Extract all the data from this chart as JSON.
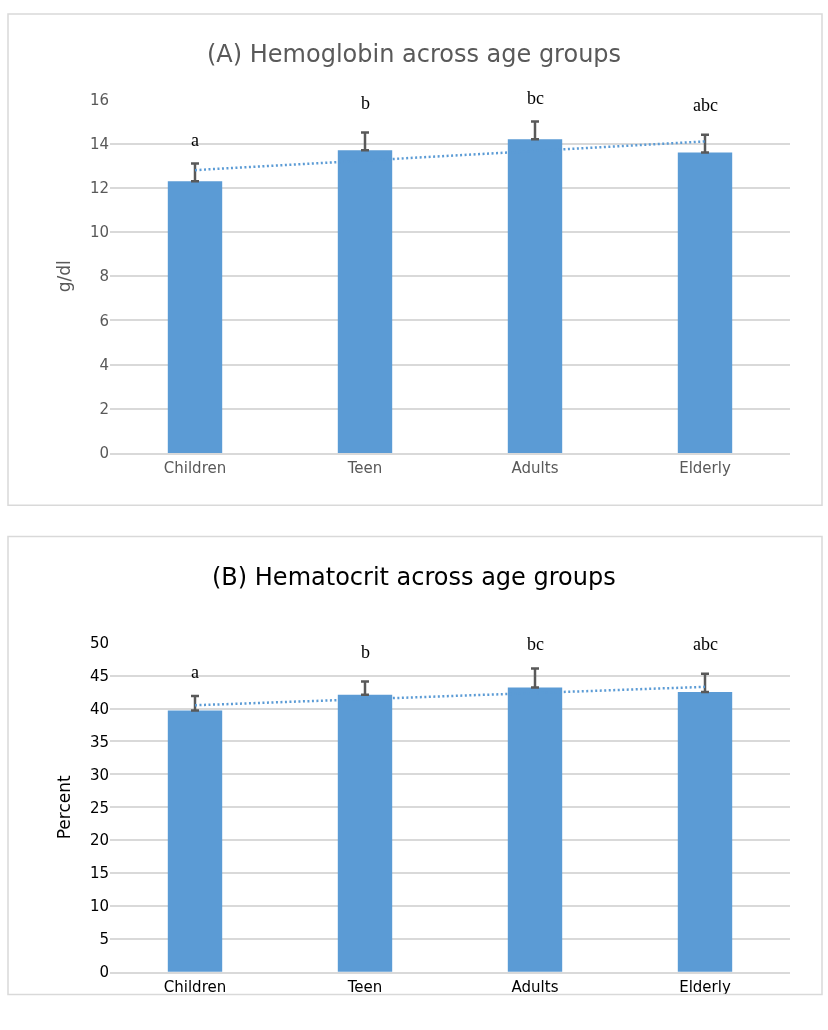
{
  "chart_data": [
    {
      "type": "bar",
      "title": "(A) Hemoglobin across age groups",
      "ylabel": "g/dl",
      "categories": [
        "Children",
        "Teen",
        "Adults",
        "Elderly"
      ],
      "series": [
        {
          "color": "#5b9bd5",
          "values": [
            12.3,
            13.7,
            14.2,
            13.6
          ],
          "errors": [
            [
              12.3,
              13.1
            ],
            [
              13.7,
              14.5
            ],
            [
              14.2,
              15.0
            ],
            [
              13.6,
              14.4
            ]
          ]
        },
        {
          "type": "line",
          "color": "#5b9bd5",
          "line_style": "dotted",
          "x": [
            "Children",
            "Elderly"
          ],
          "values": [
            12.8,
            14.1
          ]
        }
      ],
      "ylim": [
        0,
        16
      ],
      "yticks": [
        0,
        2,
        4,
        6,
        8,
        10,
        12,
        14,
        16
      ],
      "grid": "y",
      "annotations": [
        "a",
        "b",
        "bc",
        "abc"
      ]
    },
    {
      "type": "bar",
      "title": "(B) Hematocrit across age groups",
      "ylabel": "Percent",
      "categories": [
        "Children",
        "Teen",
        "Adults",
        "Elderly"
      ],
      "series": [
        {
          "color": "#5b9bd5",
          "values": [
            39.7,
            42.1,
            43.2,
            42.5
          ],
          "errors": [
            [
              39.7,
              41.9
            ],
            [
              42.1,
              44.1
            ],
            [
              43.2,
              46.1
            ],
            [
              42.5,
              45.3
            ]
          ]
        },
        {
          "type": "line",
          "color": "#5b9bd5",
          "line_style": "dotted",
          "x": [
            "Children",
            "Elderly"
          ],
          "values": [
            40.5,
            43.3
          ]
        }
      ],
      "ylim": [
        0,
        50
      ],
      "yticks": [
        0,
        5,
        10,
        15,
        20,
        25,
        30,
        35,
        40,
        45,
        50
      ],
      "grid": "y",
      "annotations": [
        "a",
        "b",
        "bc",
        "abc"
      ]
    }
  ]
}
